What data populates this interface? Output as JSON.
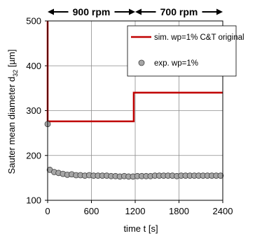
{
  "chart_data": {
    "type": "line",
    "title": "",
    "xlabel": "time t [s]",
    "ylabel_main": "Sauter mean diameter d",
    "ylabel_sub": "32",
    "ylabel_unit": " [µm]",
    "xlim": [
      0,
      2400
    ],
    "ylim": [
      100,
      500
    ],
    "x_ticks": [
      0,
      600,
      1200,
      1800,
      2400
    ],
    "y_ticks": [
      100,
      200,
      300,
      400,
      500
    ],
    "grid": true,
    "legend_position": "top-right",
    "annotations": [
      {
        "label": "900 rpm",
        "x_start": 0,
        "x_end": 1200
      },
      {
        "label": "700 rpm",
        "x_start": 1200,
        "x_end": 2400
      }
    ],
    "series": [
      {
        "name": "sim. wp=1% C&T original",
        "kind": "line",
        "color": "#c00000",
        "x": [
          0,
          0,
          1180,
          1180,
          2400
        ],
        "y": [
          500,
          276,
          276,
          340,
          340
        ]
      },
      {
        "name": "exp. wp=1%",
        "kind": "scatter",
        "color": "#a6a6a6",
        "x": [
          0,
          30,
          90,
          150,
          210,
          270,
          330,
          390,
          450,
          510,
          570,
          630,
          690,
          750,
          810,
          870,
          930,
          990,
          1050,
          1110,
          1170,
          1230,
          1290,
          1350,
          1410,
          1470,
          1530,
          1590,
          1650,
          1710,
          1770,
          1830,
          1890,
          1950,
          2010,
          2070,
          2130,
          2190,
          2250,
          2310,
          2370
        ],
        "y": [
          270,
          168,
          163,
          161,
          159,
          157,
          158,
          156,
          156,
          155,
          156,
          155,
          155,
          155,
          155,
          154,
          154,
          153,
          154,
          153,
          153,
          154,
          154,
          154,
          154,
          155,
          155,
          155,
          155,
          155,
          154,
          155,
          155,
          155,
          155,
          155,
          155,
          155,
          155,
          155,
          155
        ]
      }
    ]
  }
}
